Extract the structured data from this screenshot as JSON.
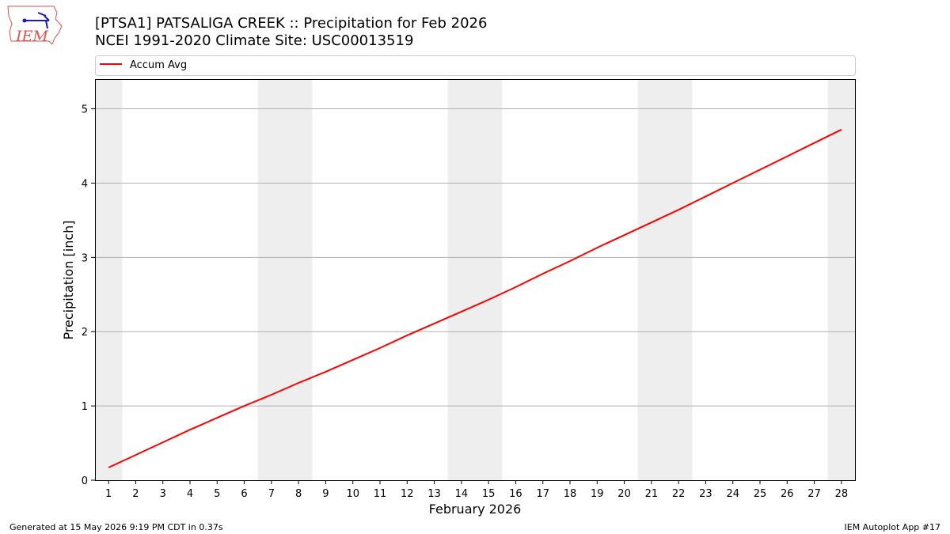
{
  "chart_data": {
    "type": "line",
    "title": "[PTSA1] PATSALIGA CREEK :: Precipitation for Feb 2026",
    "subtitle": "NCEI 1991-2020 Climate Site: USC00013519",
    "xlabel": "February 2026",
    "ylabel": "Precipitation [inch]",
    "x": [
      1,
      2,
      3,
      4,
      5,
      6,
      7,
      8,
      9,
      10,
      11,
      12,
      13,
      14,
      15,
      16,
      17,
      18,
      19,
      20,
      21,
      22,
      23,
      24,
      25,
      26,
      27,
      28
    ],
    "xlim": [
      0.5,
      28.5
    ],
    "ylim": [
      0,
      5.4
    ],
    "yticks": [
      0,
      1,
      2,
      3,
      4,
      5
    ],
    "grid": "horizontal",
    "weekend_bands": [
      [
        0.5,
        1.5
      ],
      [
        6.5,
        8.5
      ],
      [
        13.5,
        15.5
      ],
      [
        20.5,
        22.5
      ],
      [
        27.5,
        28.5
      ]
    ],
    "legend_position": "top",
    "series": [
      {
        "name": "Accum Avg",
        "color": "#ff0000",
        "values": [
          0.17,
          0.34,
          0.51,
          0.68,
          0.84,
          1.0,
          1.15,
          1.31,
          1.46,
          1.62,
          1.78,
          1.95,
          2.11,
          2.27,
          2.43,
          2.6,
          2.78,
          2.95,
          3.13,
          3.3,
          3.47,
          3.64,
          3.82,
          4.0,
          4.18,
          4.36,
          4.54,
          4.72
        ]
      }
    ]
  },
  "logo_text": "IEM",
  "footer": {
    "left": "Generated at 15 May 2026 9:19 PM CDT in 0.37s",
    "right": "IEM Autoplot App #17"
  }
}
